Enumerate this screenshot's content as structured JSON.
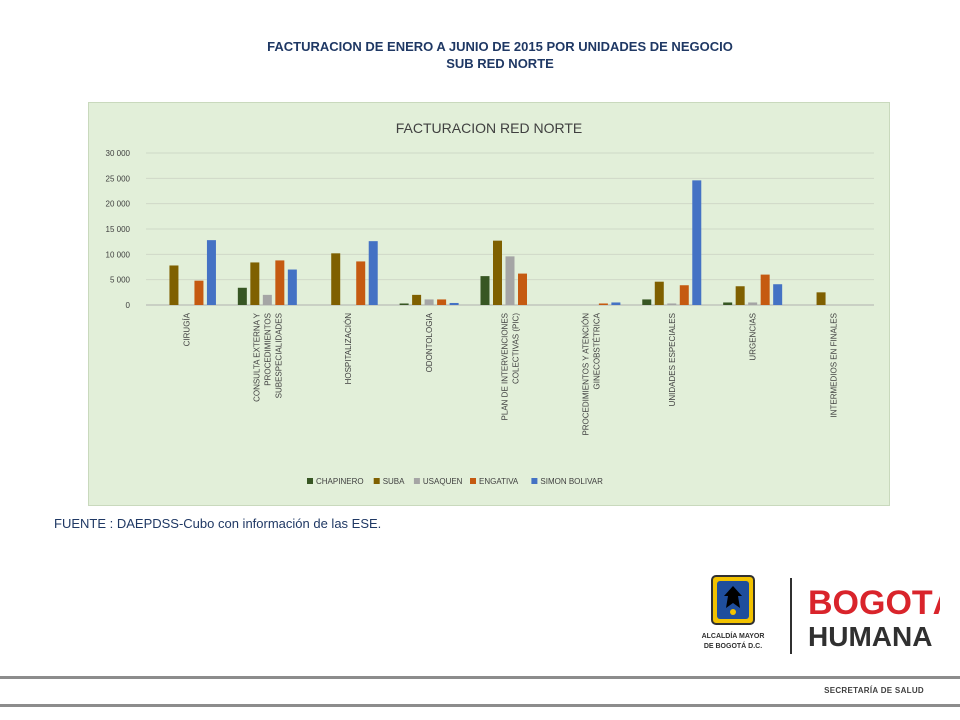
{
  "slide": {
    "title_line1": "FACTURACION  DE ENERO A JUNIO DE 2015 POR UNIDADES DE NEGOCIO",
    "title_line2": "SUB RED NORTE",
    "source": "FUENTE : DAEPDSS-Cubo con información de las ESE."
  },
  "logos": {
    "alcaldia_line1": "ALCALDÍA MAYOR",
    "alcaldia_line2": "DE BOGOTÁ D.C.",
    "bogota_line1": "BOGOTÁ",
    "bogota_line2": "HUMANA"
  },
  "footer": {
    "text": "SECRETARÍA DE SALUD"
  },
  "colors": {
    "chart_background": "#e2efd9",
    "title_text": "#1f3864",
    "bogota_red": "#d9242b",
    "bogota_dark": "#303030"
  },
  "chart_data": {
    "type": "bar",
    "title": "FACTURACION RED NORTE",
    "xlabel": "",
    "ylabel": "",
    "ylim": [
      0,
      30000
    ],
    "yticks": [
      0,
      5000,
      10000,
      15000,
      20000,
      25000,
      30000
    ],
    "ytick_labels": [
      "0",
      "5 000",
      "10 000",
      "15 000",
      "20 000",
      "25 000",
      "30 000"
    ],
    "grid": true,
    "legend_position": "bottom",
    "categories": [
      [
        "CIRUGÍA"
      ],
      [
        "CONSULTA EXTERNA Y",
        "PROCEDIMIENTOS",
        "SUBESPECIALIDADES"
      ],
      [
        "HOSPITALIZACIÓN"
      ],
      [
        "ODONTOLOGIA"
      ],
      [
        "PLAN DE INTERVENCIONES",
        "COLECTIVAS (PIC)"
      ],
      [
        "PROCEDIMIENTOS Y ATENCIÓN",
        "GINECOBSTÉTRICA"
      ],
      [
        "UNIDADES ESPECIALES"
      ],
      [
        "URGENCIAS"
      ],
      [
        "INTERMEDIOS EN FINALES"
      ]
    ],
    "series": [
      {
        "name": "CHAPINERO",
        "color": "#375623",
        "values": [
          0,
          3400,
          0,
          300,
          5700,
          0,
          1100,
          500,
          0
        ]
      },
      {
        "name": "SUBA",
        "color": "#7f6000",
        "values": [
          7800,
          8400,
          10200,
          2000,
          12700,
          0,
          4600,
          3700,
          2500
        ]
      },
      {
        "name": "USAQUEN",
        "color": "#a5a5a5",
        "values": [
          0,
          2000,
          0,
          1100,
          9600,
          0,
          300,
          500,
          0
        ]
      },
      {
        "name": "ENGATIVA",
        "color": "#c55a11",
        "values": [
          4800,
          8800,
          8600,
          1100,
          6200,
          300,
          3900,
          6000,
          0
        ]
      },
      {
        "name": "SIMON BOLIVAR",
        "color": "#4472c4",
        "values": [
          12800,
          7000,
          12600,
          400,
          0,
          500,
          24600,
          4100,
          0
        ]
      }
    ]
  }
}
